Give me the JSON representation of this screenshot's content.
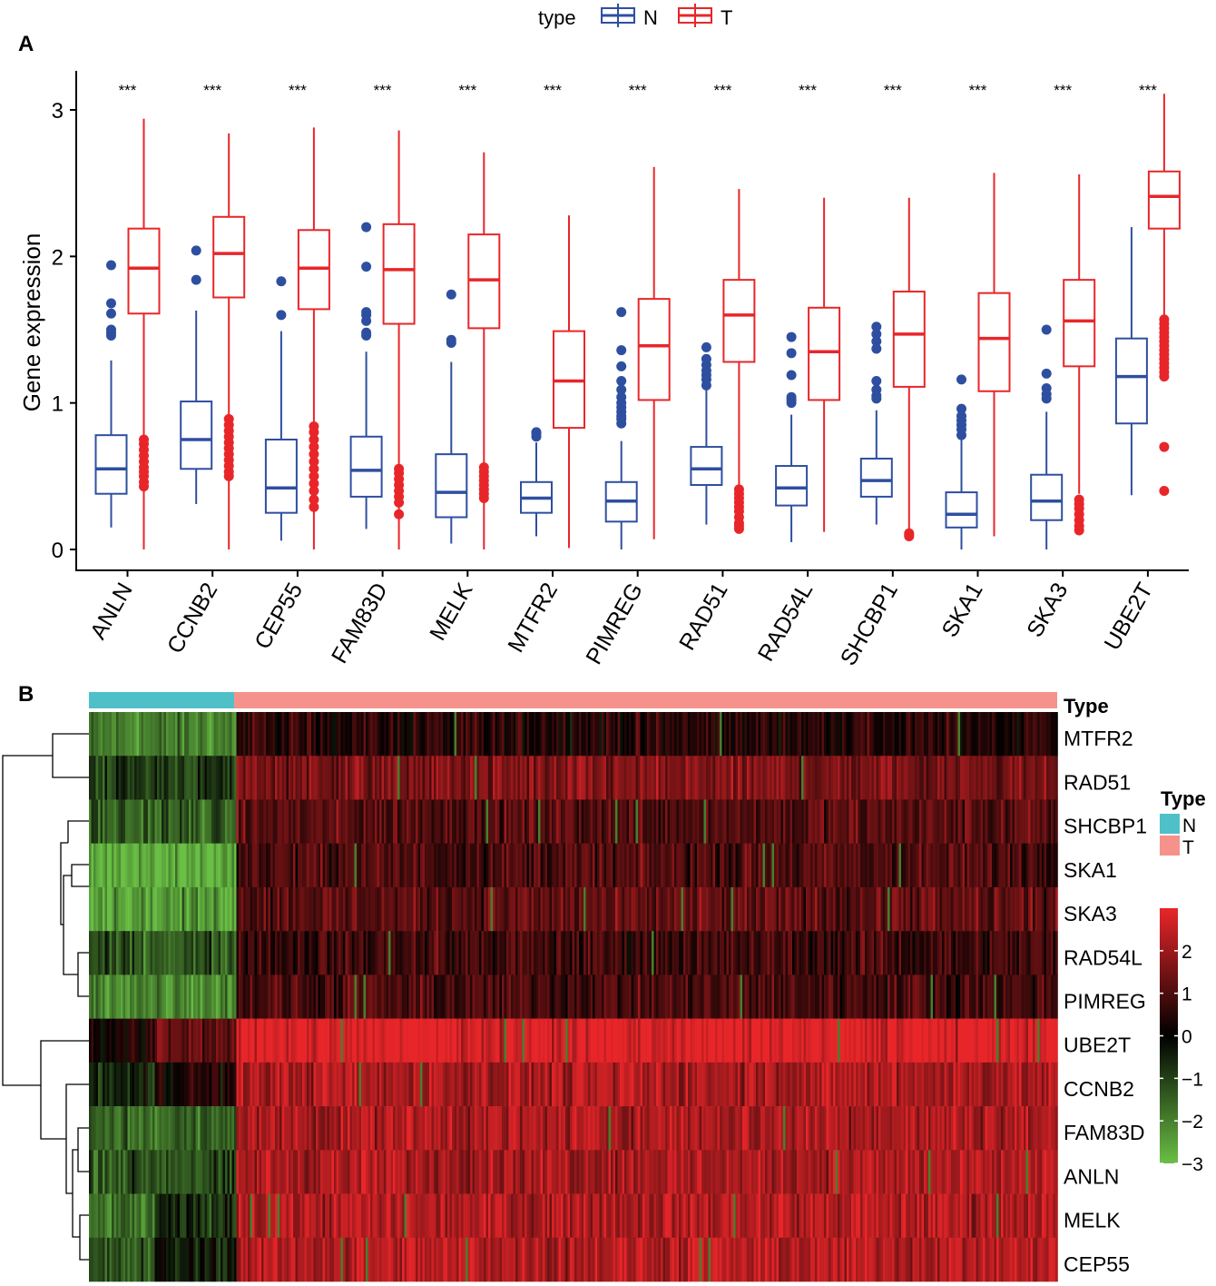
{
  "panel_a_label": "A",
  "panel_b_label": "B",
  "chart_data": [
    {
      "type": "box",
      "title": "",
      "xlabel": "",
      "ylabel": "Gene expression",
      "ylim": [
        -0.1,
        3.2
      ],
      "yticks": [
        0,
        1,
        2,
        3
      ],
      "legend": {
        "title": "type",
        "position": "top",
        "entries": [
          {
            "name": "N",
            "color": "#2e4fa0"
          },
          {
            "name": "T",
            "color": "#e8262a"
          }
        ]
      },
      "categories": [
        "ANLN",
        "CCNB2",
        "CEP55",
        "FAM83D",
        "MELK",
        "MTFR2",
        "PIMREG",
        "RAD51",
        "RAD54L",
        "SHCBP1",
        "SKA1",
        "SKA3",
        "UBE2T"
      ],
      "significance": [
        "***",
        "***",
        "***",
        "***",
        "***",
        "***",
        "***",
        "***",
        "***",
        "***",
        "***",
        "***",
        "***"
      ],
      "series": [
        {
          "name": "N",
          "color": "#2e4fa0",
          "boxes": [
            {
              "min": 0.15,
              "q1": 0.38,
              "median": 0.55,
              "q3": 0.78,
              "max": 1.29,
              "outliers": [
                1.46,
                1.48,
                1.5,
                1.61,
                1.68,
                1.94
              ]
            },
            {
              "min": 0.31,
              "q1": 0.55,
              "median": 0.75,
              "q3": 1.01,
              "max": 1.63,
              "outliers": [
                1.84,
                2.04
              ]
            },
            {
              "min": 0.06,
              "q1": 0.25,
              "median": 0.42,
              "q3": 0.75,
              "max": 1.49,
              "outliers": [
                1.6,
                1.83
              ]
            },
            {
              "min": 0.14,
              "q1": 0.36,
              "median": 0.54,
              "q3": 0.77,
              "max": 1.35,
              "outliers": [
                1.46,
                1.48,
                1.56,
                1.6,
                1.62,
                1.93,
                2.2
              ]
            },
            {
              "min": 0.04,
              "q1": 0.22,
              "median": 0.39,
              "q3": 0.65,
              "max": 1.28,
              "outliers": [
                1.41,
                1.43,
                1.74
              ]
            },
            {
              "min": 0.09,
              "q1": 0.25,
              "median": 0.35,
              "q3": 0.46,
              "max": 0.73,
              "outliers": [
                0.77,
                0.79,
                0.8
              ]
            },
            {
              "min": 0.0,
              "q1": 0.19,
              "median": 0.33,
              "q3": 0.46,
              "max": 0.74,
              "outliers": [
                0.86,
                0.89,
                0.91,
                0.94,
                0.97,
                1.0,
                1.04,
                1.09,
                1.15,
                1.25,
                1.36,
                1.62
              ]
            },
            {
              "min": 0.17,
              "q1": 0.44,
              "median": 0.55,
              "q3": 0.7,
              "max": 1.09,
              "outliers": [
                1.12,
                1.16,
                1.19,
                1.22,
                1.26,
                1.3,
                1.38
              ]
            },
            {
              "min": 0.05,
              "q1": 0.3,
              "median": 0.42,
              "q3": 0.57,
              "max": 0.92,
              "outliers": [
                1.0,
                1.02,
                1.04,
                1.19,
                1.34,
                1.45
              ]
            },
            {
              "min": 0.17,
              "q1": 0.36,
              "median": 0.47,
              "q3": 0.62,
              "max": 0.95,
              "outliers": [
                1.03,
                1.05,
                1.09,
                1.15,
                1.37,
                1.42,
                1.47,
                1.52
              ]
            },
            {
              "min": 0.0,
              "q1": 0.15,
              "median": 0.24,
              "q3": 0.39,
              "max": 0.75,
              "outliers": [
                0.78,
                0.82,
                0.85,
                0.88,
                0.91,
                0.96,
                1.16
              ]
            },
            {
              "min": 0.0,
              "q1": 0.2,
              "median": 0.33,
              "q3": 0.51,
              "max": 0.94,
              "outliers": [
                1.03,
                1.06,
                1.1,
                1.2,
                1.5
              ]
            },
            {
              "min": 0.37,
              "q1": 0.86,
              "median": 1.18,
              "q3": 1.44,
              "max": 2.2,
              "outliers": []
            }
          ]
        },
        {
          "name": "T",
          "color": "#e8262a",
          "boxes": [
            {
              "min": 0.0,
              "q1": 1.61,
              "median": 1.92,
              "q3": 2.19,
              "max": 2.94,
              "outliers": [
                0.43,
                0.46,
                0.5,
                0.53,
                0.56,
                0.6,
                0.64,
                0.68,
                0.72,
                0.75
              ]
            },
            {
              "min": 0.0,
              "q1": 1.72,
              "median": 2.02,
              "q3": 2.27,
              "max": 2.84,
              "outliers": [
                0.5,
                0.53,
                0.57,
                0.61,
                0.65,
                0.69,
                0.73,
                0.77,
                0.81,
                0.85,
                0.89
              ]
            },
            {
              "min": 0.0,
              "q1": 1.64,
              "median": 1.92,
              "q3": 2.18,
              "max": 2.88,
              "outliers": [
                0.29,
                0.34,
                0.4,
                0.45,
                0.5,
                0.55,
                0.6,
                0.65,
                0.7,
                0.75,
                0.8,
                0.84
              ]
            },
            {
              "min": 0.0,
              "q1": 1.54,
              "median": 1.91,
              "q3": 2.22,
              "max": 2.86,
              "outliers": [
                0.24,
                0.32,
                0.36,
                0.4,
                0.44,
                0.48,
                0.52,
                0.55
              ]
            },
            {
              "min": 0.0,
              "q1": 1.51,
              "median": 1.84,
              "q3": 2.15,
              "max": 2.71,
              "outliers": [
                0.35,
                0.38,
                0.41,
                0.44,
                0.47,
                0.5,
                0.53,
                0.56
              ]
            },
            {
              "min": 0.01,
              "q1": 0.83,
              "median": 1.15,
              "q3": 1.49,
              "max": 2.28,
              "outliers": []
            },
            {
              "min": 0.07,
              "q1": 1.02,
              "median": 1.39,
              "q3": 1.71,
              "max": 2.61,
              "outliers": []
            },
            {
              "min": 0.44,
              "q1": 1.28,
              "median": 1.6,
              "q3": 1.84,
              "max": 2.46,
              "outliers": [
                0.14,
                0.16,
                0.18,
                0.22,
                0.26,
                0.29,
                0.32,
                0.35,
                0.38,
                0.41
              ]
            },
            {
              "min": 0.12,
              "q1": 1.02,
              "median": 1.35,
              "q3": 1.65,
              "max": 2.4,
              "outliers": []
            },
            {
              "min": 0.12,
              "q1": 1.11,
              "median": 1.47,
              "q3": 1.76,
              "max": 2.4,
              "outliers": [
                0.09,
                0.1,
                0.11
              ]
            },
            {
              "min": 0.09,
              "q1": 1.08,
              "median": 1.44,
              "q3": 1.75,
              "max": 2.57,
              "outliers": []
            },
            {
              "min": 0.38,
              "q1": 1.25,
              "median": 1.56,
              "q3": 1.84,
              "max": 2.56,
              "outliers": [
                0.13,
                0.16,
                0.2,
                0.24,
                0.28,
                0.31,
                0.34
              ]
            },
            {
              "min": 1.6,
              "q1": 2.19,
              "median": 2.41,
              "q3": 2.58,
              "max": 3.11,
              "outliers": [
                0.4,
                0.7,
                1.18,
                1.21,
                1.24,
                1.27,
                1.3,
                1.33,
                1.36,
                1.39,
                1.42,
                1.45,
                1.48,
                1.51,
                1.54,
                1.57
              ]
            }
          ]
        }
      ]
    },
    {
      "type": "heatmap",
      "annotation_label": "Type",
      "rows": [
        "MTFR2",
        "RAD51",
        "SHCBP1",
        "SKA1",
        "SKA3",
        "RAD54L",
        "PIMREG",
        "UBE2T",
        "CCNB2",
        "FAM83D",
        "ANLN",
        "MELK",
        "CEP55"
      ],
      "column_groups": [
        {
          "name": "N",
          "fraction": 0.15,
          "color": "#4fc0c8"
        },
        {
          "name": "T",
          "fraction": 0.85,
          "color": "#f5928c"
        }
      ],
      "row_means": {
        "N": [
          -2.0,
          -0.9,
          -1.5,
          -2.7,
          -2.4,
          -1.3,
          -2.0,
          0.3,
          -0.6,
          -1.6,
          -1.2,
          -1.8,
          -1.4
        ],
        "T": [
          0.5,
          1.6,
          1.1,
          1.0,
          1.2,
          0.8,
          0.9,
          2.9,
          2.2,
          2.2,
          2.2,
          2.3,
          2.3
        ]
      },
      "colorbar": {
        "range": [
          -3,
          3
        ],
        "ticks": [
          2,
          1,
          0,
          -1,
          -2,
          -3
        ],
        "colors": [
          "#6abf45",
          "#000000",
          "#e8262a"
        ]
      },
      "legend": {
        "title": "Type",
        "entries": [
          {
            "name": "N",
            "color": "#4fc0c8"
          },
          {
            "name": "T",
            "color": "#f5928c"
          }
        ]
      },
      "row_dendrogram": "left"
    }
  ]
}
